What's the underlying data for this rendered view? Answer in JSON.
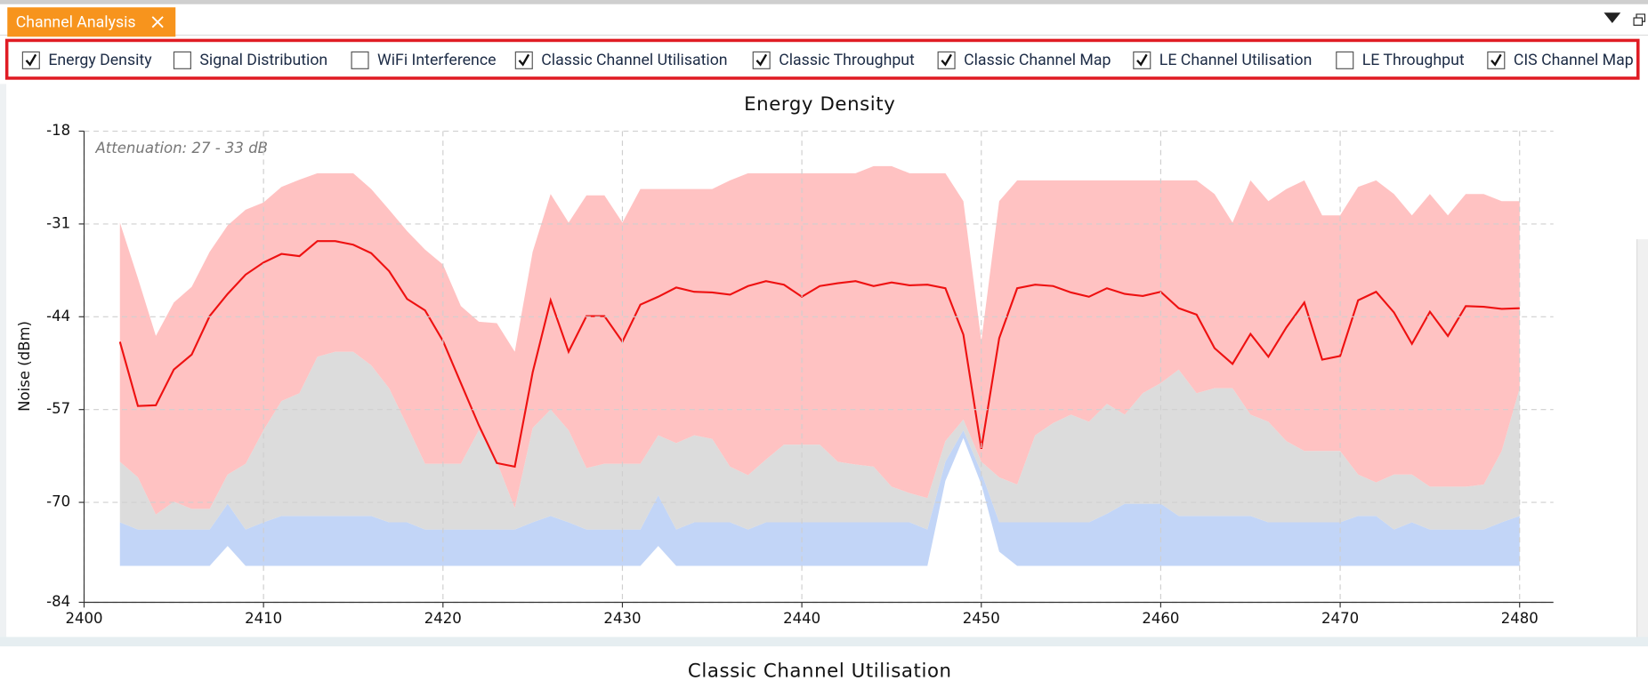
{
  "tab": {
    "title": "Channel Analysis"
  },
  "toolbar": {
    "checkboxes": [
      {
        "label": "Energy Density",
        "checked": true
      },
      {
        "label": "Signal Distribution",
        "checked": false
      },
      {
        "label": "WiFi Interference",
        "checked": false
      },
      {
        "label": "Classic Channel Utilisation",
        "checked": true
      },
      {
        "label": "Classic Throughput",
        "checked": true
      },
      {
        "label": "Classic Channel Map",
        "checked": true
      },
      {
        "label": "LE Channel Utilisation",
        "checked": true
      },
      {
        "label": "LE Throughput",
        "checked": false
      },
      {
        "label": "CIS Channel Map",
        "checked": true
      }
    ]
  },
  "chart_data": {
    "type": "area",
    "title": "Energy Density",
    "ylabel": "Noise (dBm)",
    "annotation": "Attenuation: 27 - 33 dB",
    "x": [
      2402,
      2403,
      2404,
      2405,
      2406,
      2407,
      2408,
      2409,
      2410,
      2411,
      2412,
      2413,
      2414,
      2415,
      2416,
      2417,
      2418,
      2419,
      2420,
      2421,
      2422,
      2423,
      2424,
      2425,
      2426,
      2427,
      2428,
      2429,
      2430,
      2431,
      2432,
      2433,
      2434,
      2435,
      2436,
      2437,
      2438,
      2439,
      2440,
      2441,
      2442,
      2443,
      2444,
      2445,
      2446,
      2447,
      2448,
      2449,
      2450,
      2451,
      2452,
      2453,
      2454,
      2455,
      2456,
      2457,
      2458,
      2459,
      2460,
      2461,
      2462,
      2463,
      2464,
      2465,
      2466,
      2467,
      2468,
      2469,
      2470,
      2471,
      2472,
      2473,
      2474,
      2475,
      2476,
      2477,
      2478,
      2479,
      2480
    ],
    "xlim": [
      2400,
      2482
    ],
    "xticks": [
      2400,
      2410,
      2420,
      2430,
      2440,
      2450,
      2460,
      2470,
      2480
    ],
    "ylim": [
      -84,
      -18
    ],
    "yticks": [
      -84,
      -70,
      -57,
      -44,
      -31,
      -18
    ],
    "grid": true,
    "series": [
      {
        "kind": "floor",
        "values": [
          -78.9,
          -78.9,
          -78.9,
          -78.9,
          -78.9,
          -78.9,
          -76.1,
          -78.9,
          -78.9,
          -78.9,
          -78.9,
          -78.9,
          -78.9,
          -78.9,
          -78.9,
          -78.9,
          -78.9,
          -78.9,
          -78.9,
          -78.9,
          -78.9,
          -78.9,
          -78.9,
          -78.9,
          -78.9,
          -78.9,
          -78.9,
          -78.9,
          -78.9,
          -78.9,
          -76.1,
          -78.9,
          -78.9,
          -78.9,
          -78.9,
          -78.9,
          -78.9,
          -78.9,
          -78.9,
          -78.9,
          -78.9,
          -78.9,
          -78.9,
          -78.9,
          -78.9,
          -78.9,
          -67.0,
          -61.0,
          -67.5,
          -76.9,
          -78.9,
          -78.9,
          -78.9,
          -78.9,
          -78.9,
          -78.9,
          -78.9,
          -78.9,
          -78.9,
          -78.9,
          -78.9,
          -78.9,
          -78.9,
          -78.9,
          -78.9,
          -78.9,
          -78.9,
          -78.9,
          -78.9,
          -78.9,
          -78.9,
          -78.9,
          -78.9,
          -78.9,
          -78.9,
          -78.9,
          -78.9,
          -78.9,
          -78.9
        ]
      },
      {
        "kind": "band",
        "color": "#c2d5f7",
        "values": [
          -72.8,
          -73.8,
          -73.8,
          -73.8,
          -73.8,
          -73.8,
          -70.2,
          -73.8,
          -72.8,
          -71.9,
          -71.9,
          -71.9,
          -71.9,
          -71.9,
          -71.9,
          -72.8,
          -72.8,
          -73.8,
          -73.8,
          -73.8,
          -73.8,
          -73.8,
          -73.8,
          -72.8,
          -71.9,
          -72.8,
          -73.8,
          -73.8,
          -73.8,
          -73.8,
          -69.0,
          -73.8,
          -72.8,
          -72.8,
          -72.8,
          -73.8,
          -72.8,
          -72.8,
          -72.8,
          -72.8,
          -72.8,
          -72.8,
          -72.8,
          -72.8,
          -72.8,
          -73.8,
          -64.3,
          -59.9,
          -65.8,
          -72.8,
          -72.8,
          -72.8,
          -72.8,
          -72.8,
          -72.8,
          -71.6,
          -70.2,
          -70.2,
          -70.2,
          -71.9,
          -71.9,
          -71.9,
          -71.9,
          -71.9,
          -72.8,
          -72.8,
          -72.8,
          -72.8,
          -72.8,
          -71.9,
          -71.9,
          -73.8,
          -72.8,
          -73.8,
          -73.8,
          -73.8,
          -73.8,
          -72.8,
          -71.9
        ]
      },
      {
        "kind": "band",
        "color": "#dcdcdc",
        "values": [
          -64.3,
          -66.5,
          -71.7,
          -69.9,
          -70.9,
          -70.9,
          -66.1,
          -64.6,
          -59.9,
          -55.8,
          -54.7,
          -49.6,
          -48.9,
          -48.9,
          -50.8,
          -54.0,
          -59.2,
          -64.6,
          -64.6,
          -64.6,
          -59.9,
          -64.3,
          -70.8,
          -59.6,
          -57.0,
          -59.9,
          -65.2,
          -64.6,
          -64.6,
          -64.6,
          -60.6,
          -61.7,
          -60.6,
          -61.1,
          -65.0,
          -66.2,
          -64.0,
          -61.9,
          -61.9,
          -61.9,
          -64.3,
          -64.7,
          -65.0,
          -67.8,
          -68.7,
          -69.4,
          -61.4,
          -58.4,
          -64.3,
          -66.5,
          -67.5,
          -60.6,
          -58.9,
          -57.7,
          -58.7,
          -56.2,
          -57.7,
          -54.7,
          -53.3,
          -51.4,
          -54.7,
          -54.0,
          -54.0,
          -57.7,
          -58.7,
          -61.4,
          -62.8,
          -62.8,
          -62.8,
          -66.1,
          -67.2,
          -66.1,
          -66.1,
          -67.8,
          -67.8,
          -67.8,
          -67.5,
          -62.8,
          -54.0
        ]
      },
      {
        "kind": "band",
        "color": "#ffc2c2",
        "values": [
          -30.8,
          -38.6,
          -46.7,
          -42.0,
          -39.8,
          -34.9,
          -31.2,
          -29.0,
          -28.0,
          -25.8,
          -24.8,
          -23.9,
          -23.9,
          -23.9,
          -26.1,
          -29.0,
          -32.0,
          -34.6,
          -36.7,
          -42.5,
          -44.7,
          -44.9,
          -48.9,
          -34.9,
          -26.8,
          -30.8,
          -27.0,
          -27.0,
          -30.8,
          -26.1,
          -26.1,
          -26.1,
          -26.1,
          -26.1,
          -24.9,
          -23.9,
          -23.9,
          -23.9,
          -23.9,
          -23.9,
          -23.9,
          -23.9,
          -22.9,
          -22.9,
          -23.9,
          -23.9,
          -23.9,
          -27.8,
          -47.4,
          -27.8,
          -24.9,
          -24.9,
          -24.9,
          -24.9,
          -24.9,
          -24.9,
          -24.9,
          -24.9,
          -24.9,
          -24.9,
          -24.9,
          -26.8,
          -30.8,
          -24.9,
          -27.8,
          -26.1,
          -24.9,
          -29.8,
          -29.8,
          -25.8,
          -24.9,
          -26.8,
          -29.8,
          -26.8,
          -29.8,
          -26.8,
          -26.8,
          -27.8,
          -27.8
        ]
      },
      {
        "kind": "line",
        "color": "#ee1111",
        "values": [
          -47.5,
          -56.5,
          -56.4,
          -51.4,
          -49.3,
          -43.9,
          -40.8,
          -38.1,
          -36.4,
          -35.2,
          -35.5,
          -33.4,
          -33.4,
          -33.9,
          -35.1,
          -37.6,
          -41.5,
          -43.1,
          -47.4,
          -53.3,
          -59.2,
          -64.5,
          -65.0,
          -51.8,
          -41.7,
          -48.9,
          -43.9,
          -43.9,
          -47.5,
          -42.3,
          -41.2,
          -39.9,
          -40.5,
          -40.6,
          -40.9,
          -39.7,
          -39.0,
          -39.5,
          -41.2,
          -39.7,
          -39.3,
          -39.0,
          -39.7,
          -39.2,
          -39.6,
          -39.5,
          -40.0,
          -46.5,
          -62.5,
          -47.0,
          -40.0,
          -39.5,
          -39.7,
          -40.6,
          -41.2,
          -40.0,
          -40.8,
          -41.1,
          -40.5,
          -42.8,
          -43.7,
          -48.4,
          -50.6,
          -46.4,
          -49.6,
          -45.5,
          -42.0,
          -50.0,
          -49.5,
          -41.7,
          -40.5,
          -43.4,
          -47.8,
          -43.3,
          -46.7,
          -42.5,
          -42.6,
          -42.9,
          -42.8
        ]
      }
    ]
  },
  "next_panel": {
    "title": "Classic Channel Utilisation"
  }
}
